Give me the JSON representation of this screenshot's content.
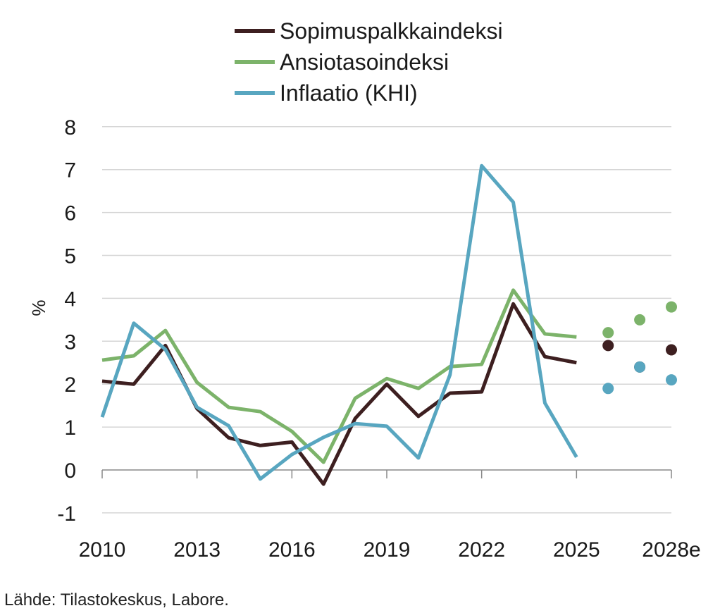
{
  "chart_data": {
    "type": "line",
    "title": "",
    "xlabel": "",
    "ylabel": "%",
    "ylim": [
      -1,
      8
    ],
    "yticks": [
      -1,
      0,
      1,
      2,
      3,
      4,
      5,
      6,
      7,
      8
    ],
    "xlim": [
      2010,
      2028
    ],
    "xticks": [
      {
        "year": 2010,
        "label": "2010"
      },
      {
        "year": 2013,
        "label": "2013"
      },
      {
        "year": 2016,
        "label": "2016"
      },
      {
        "year": 2019,
        "label": "2019"
      },
      {
        "year": 2022,
        "label": "2022"
      },
      {
        "year": 2025,
        "label": "2025"
      },
      {
        "year": 2028,
        "label": "2028e"
      }
    ],
    "grid": "horizontal",
    "legend_position": "top",
    "x": [
      2010,
      2011,
      2012,
      2013,
      2014,
      2015,
      2016,
      2017,
      2018,
      2019,
      2020,
      2021,
      2022,
      2023,
      2024,
      2025
    ],
    "forecast_x": [
      2026,
      2027,
      2028
    ],
    "series": [
      {
        "name": "Sopimuspalkkaindeksi",
        "color": "#3d1f20",
        "values": [
          2.07,
          2.0,
          2.9,
          1.43,
          0.75,
          0.57,
          0.65,
          -0.33,
          1.2,
          2.0,
          1.25,
          1.79,
          1.82,
          3.87,
          2.64,
          2.5
        ],
        "forecast": [
          2.9,
          2.4,
          2.8
        ]
      },
      {
        "name": "Ansiotasoindeksi",
        "color": "#7cb36a",
        "values": [
          2.56,
          2.66,
          3.25,
          2.04,
          1.46,
          1.36,
          0.9,
          0.18,
          1.67,
          2.13,
          1.9,
          2.41,
          2.46,
          4.19,
          3.17,
          3.1
        ],
        "forecast": [
          3.2,
          3.5,
          3.8
        ]
      },
      {
        "name": "Inflaatio (KHI)",
        "color": "#58a6c0",
        "values": [
          1.23,
          3.42,
          2.81,
          1.46,
          1.03,
          -0.21,
          0.36,
          0.76,
          1.08,
          1.02,
          0.28,
          2.22,
          7.09,
          6.24,
          1.56,
          0.3
        ],
        "forecast": [
          1.9,
          2.4,
          2.1
        ]
      }
    ]
  },
  "source": "Lähde: Tilastokeskus, Labore."
}
